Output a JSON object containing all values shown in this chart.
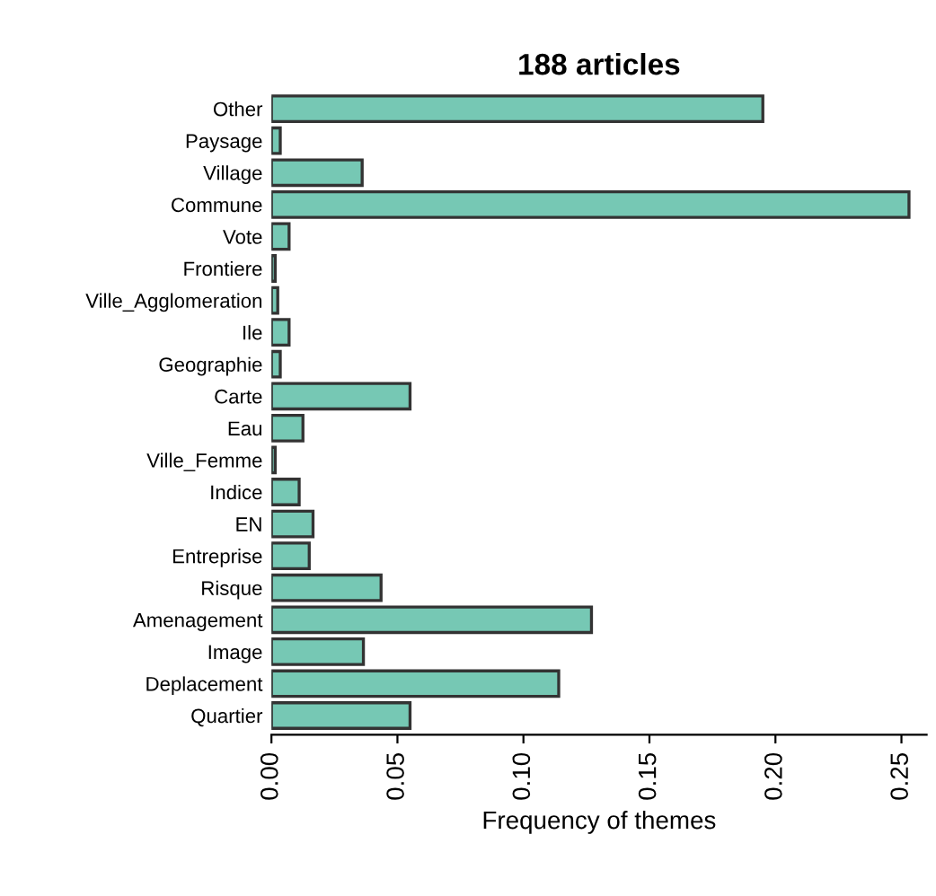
{
  "chart_data": {
    "type": "bar",
    "orientation": "horizontal",
    "title": "188 articles",
    "xlabel": "Frequency of themes",
    "categories": [
      "Other",
      "Paysage",
      "Village",
      "Commune",
      "Vote",
      "Frontiere",
      "Ville_Agglomeration",
      "Ile",
      "Geographie",
      "Carte",
      "Eau",
      "Ville_Femme",
      "Indice",
      "EN",
      "Entreprise",
      "Risque",
      "Amenagement",
      "Image",
      "Deplacement",
      "Quartier"
    ],
    "values": [
      0.195,
      0.0035,
      0.036,
      0.253,
      0.007,
      0.0015,
      0.0025,
      0.007,
      0.0035,
      0.055,
      0.0125,
      0.0015,
      0.011,
      0.0165,
      0.015,
      0.0435,
      0.127,
      0.0365,
      0.114,
      0.055
    ],
    "color": "#76c8b4",
    "xlim": [
      0,
      0.26
    ],
    "xticks": [
      {
        "value": 0,
        "label": "0.00"
      },
      {
        "value": 0.05,
        "label": "0.05"
      },
      {
        "value": 0.1,
        "label": "0.10"
      },
      {
        "value": 0.15,
        "label": "0.15"
      },
      {
        "value": 0.2,
        "label": "0.20"
      },
      {
        "value": 0.25,
        "label": "0.25"
      }
    ],
    "grid": false,
    "legend": false
  }
}
